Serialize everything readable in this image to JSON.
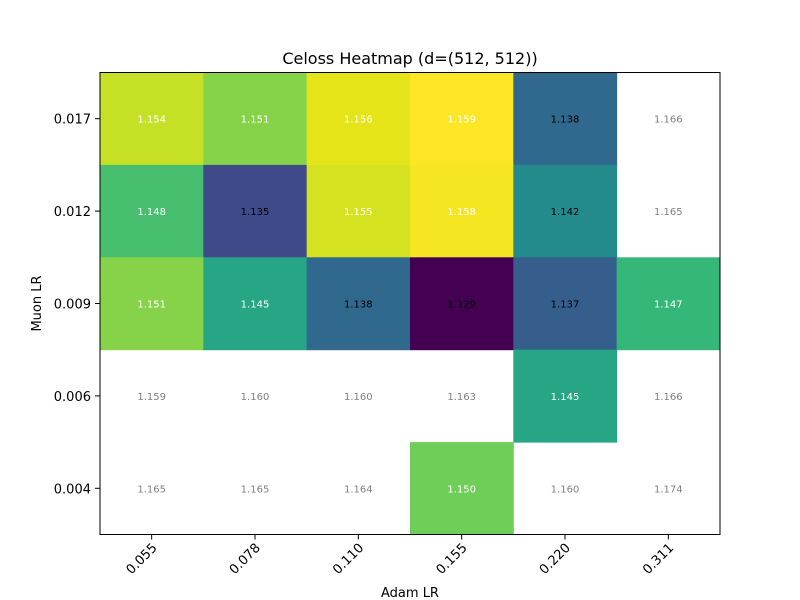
{
  "chart_data": {
    "type": "heatmap",
    "title": "Celoss Heatmap (d=(512, 512))",
    "xlabel": "Adam LR",
    "ylabel": "Muon LR",
    "x_categories": [
      "0.055",
      "0.078",
      "0.110",
      "0.155",
      "0.220",
      "0.311"
    ],
    "y_categories": [
      "0.017",
      "0.012",
      "0.009",
      "0.006",
      "0.004"
    ],
    "values": [
      [
        1.154,
        1.151,
        1.156,
        1.159,
        1.138,
        1.166
      ],
      [
        1.148,
        1.135,
        1.155,
        1.158,
        1.142,
        1.165
      ],
      [
        1.151,
        1.145,
        1.138,
        1.129,
        1.137,
        1.147
      ],
      [
        1.159,
        1.16,
        1.16,
        1.163,
        1.145,
        1.166
      ],
      [
        1.165,
        1.165,
        1.164,
        1.15,
        1.16,
        1.174
      ]
    ],
    "value_labels": [
      [
        "1.154",
        "1.151",
        "1.156",
        "1.159",
        "1.138",
        "1.166"
      ],
      [
        "1.148",
        "1.135",
        "1.155",
        "1.158",
        "1.142",
        "1.165"
      ],
      [
        "1.151",
        "1.145",
        "1.138",
        "1.129",
        "1.137",
        "1.147"
      ],
      [
        "1.159",
        "1.160",
        "1.160",
        "1.163",
        "1.145",
        "1.166"
      ],
      [
        "1.165",
        "1.165",
        "1.164",
        "1.150",
        "1.160",
        "1.174"
      ]
    ],
    "masked": [
      [
        false,
        false,
        false,
        false,
        false,
        true
      ],
      [
        false,
        false,
        false,
        false,
        false,
        true
      ],
      [
        false,
        false,
        false,
        false,
        false,
        false
      ],
      [
        true,
        true,
        true,
        true,
        false,
        true
      ],
      [
        true,
        true,
        true,
        false,
        true,
        true
      ]
    ],
    "colormap": "viridis",
    "color_range": [
      1.129,
      1.159
    ],
    "masked_label_color": "#808080",
    "grid": false,
    "x_tick_rotation": 45
  }
}
